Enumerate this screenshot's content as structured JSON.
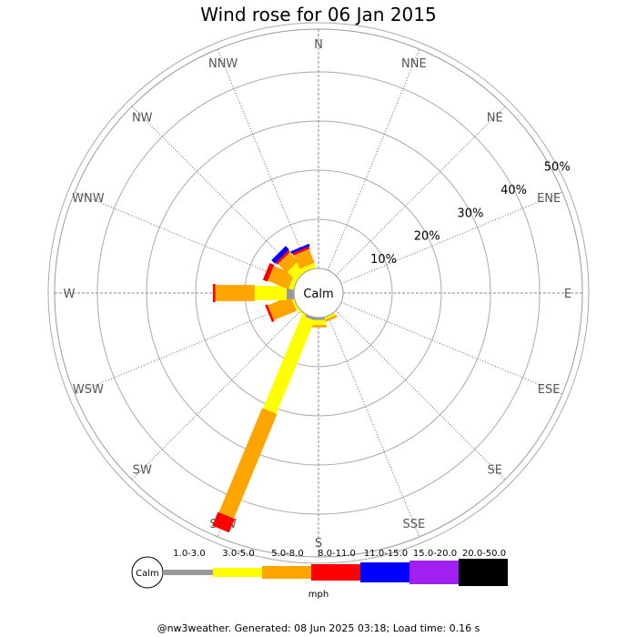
{
  "chart_data": {
    "type": "wind-rose",
    "title": "Wind rose for 06 Jan 2015",
    "center_label": "Calm",
    "unit": "mph",
    "directions": [
      "N",
      "NNE",
      "NE",
      "ENE",
      "E",
      "ESE",
      "SE",
      "SSE",
      "S",
      "SSW",
      "SW",
      "WSW",
      "W",
      "WNW",
      "NW",
      "NNW"
    ],
    "ring_labels": [
      "10%",
      "20%",
      "30%",
      "40%",
      "50%"
    ],
    "speed_bins": [
      {
        "label": "1.0-3.0",
        "color": "#999999"
      },
      {
        "label": "3.0-5.0",
        "color": "#ffff00"
      },
      {
        "label": "5.0-8.0",
        "color": "#ffa500"
      },
      {
        "label": "8.0-11.0",
        "color": "#ff0000"
      },
      {
        "label": "11.0-15.0",
        "color": "#0000ff"
      },
      {
        "label": "15.0-20.0",
        "color": "#a020f0"
      },
      {
        "label": "20.0-50.0",
        "color": "#000000"
      }
    ],
    "series_cumulative_percent": {
      "N": [
        0,
        0,
        0,
        0,
        0,
        0,
        0
      ],
      "NNE": [
        0,
        0,
        0,
        0,
        0,
        0,
        0
      ],
      "NE": [
        0,
        0,
        0,
        0,
        0,
        0,
        0
      ],
      "ENE": [
        0,
        0,
        0,
        0,
        0,
        0,
        0
      ],
      "E": [
        0,
        0,
        0,
        0,
        0,
        0,
        0
      ],
      "ESE": [
        0,
        0,
        0,
        0,
        0,
        0,
        0
      ],
      "SE": [
        0,
        0,
        0,
        0,
        0,
        0,
        0
      ],
      "SSE": [
        0,
        0.5,
        1.0,
        1.0,
        1.0,
        1.0,
        1.0
      ],
      "S": [
        0.5,
        1.5,
        2.0,
        2.0,
        2.0,
        2.0,
        2.0
      ],
      "SSW": [
        0.5,
        21.0,
        44.0,
        47.0,
        47.0,
        47.0,
        47.0
      ],
      "SW": [
        0,
        0.5,
        0.5,
        0.5,
        0.5,
        0.5,
        0.5
      ],
      "WSW": [
        0,
        0.5,
        5.5,
        6.0,
        6.0,
        6.0,
        6.0
      ],
      "W": [
        1.5,
        8.0,
        16.0,
        16.5,
        16.5,
        16.5,
        16.5
      ],
      "WNW": [
        0,
        1.0,
        5.5,
        6.5,
        6.5,
        6.5,
        6.5
      ],
      "NW": [
        0,
        2.5,
        5.0,
        5.5,
        6.5,
        6.5,
        6.5
      ],
      "NNW": [
        0,
        1.0,
        4.0,
        4.5,
        5.0,
        5.0,
        5.0
      ]
    }
  },
  "footer": "@nw3weather. Generated: 08 Jun 2025 03:18; Load time: 0.16 s"
}
